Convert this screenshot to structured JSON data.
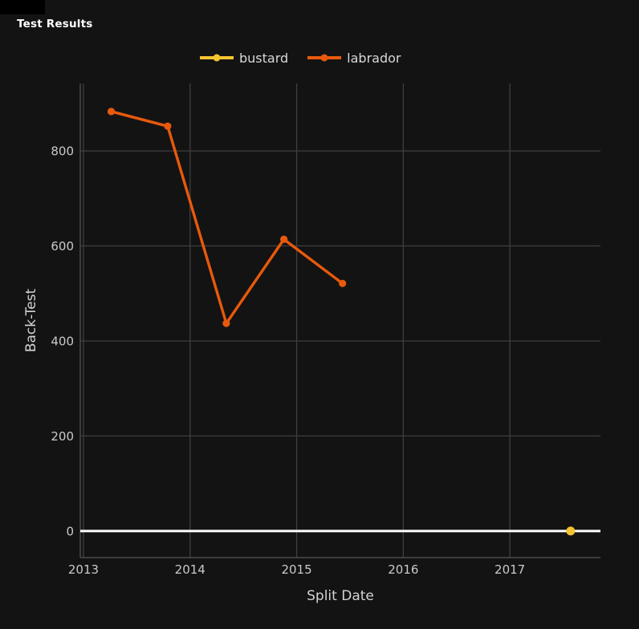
{
  "title": "Test Results",
  "page": {
    "background": "#131313",
    "corner_artifact_color": "#000000"
  },
  "legend": {
    "items": [
      {
        "label": "bustard",
        "color": "#F4C430"
      },
      {
        "label": "labrador",
        "color": "#E8590C"
      }
    ]
  },
  "chart_data": {
    "type": "line",
    "title": "Test Results",
    "xlabel": "Split Date",
    "ylabel": "Back-Test",
    "xlim": [
      2012.97,
      2017.85
    ],
    "ylim": [
      -56,
      942
    ],
    "xticks": [
      2013,
      2014,
      2015,
      2016,
      2017
    ],
    "xtick_labels": [
      "2013",
      "2014",
      "2015",
      "2016",
      "2017"
    ],
    "yticks": [
      0,
      200,
      400,
      600,
      800
    ],
    "ytick_labels": [
      "0",
      "200",
      "400",
      "600",
      "800"
    ],
    "grid": true,
    "legend_position": "top-center",
    "zeroline": {
      "y": 0,
      "color": "#FFFFFF",
      "width": 3
    },
    "series": [
      {
        "name": "bustard",
        "color": "#F4C430",
        "x": [
          2017.57
        ],
        "y": [
          0
        ]
      },
      {
        "name": "labrador",
        "color": "#E8590C",
        "x": [
          2013.26,
          2013.79,
          2014.34,
          2014.88,
          2015.43
        ],
        "y": [
          883,
          852,
          437,
          614,
          521
        ]
      }
    ],
    "colors": {
      "background": "#131313",
      "gridline": "#3F3F3F",
      "axisline": "#4A4A4A",
      "zeroline": "#FFFFFF",
      "tick_text": "#C9C9C9",
      "axis_title_text": "#D4D4D4",
      "legend_text": "#D8D8D8",
      "title_text": "#FFFFFF"
    }
  }
}
